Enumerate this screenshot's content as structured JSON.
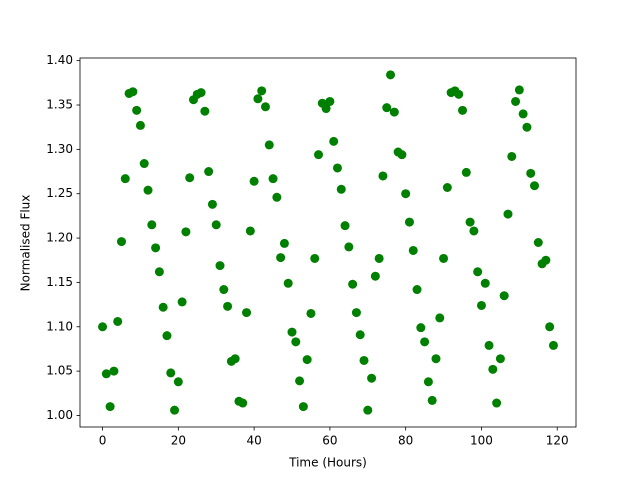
{
  "chart_data": {
    "type": "scatter",
    "xlabel": "Time (Hours)",
    "ylabel": "Normalised Flux",
    "color": "green",
    "x": [
      0,
      1,
      2,
      3,
      4,
      5,
      6,
      7,
      8,
      9,
      10,
      11,
      12,
      13,
      14,
      15,
      16,
      17,
      18,
      19,
      20,
      21,
      22,
      23,
      24,
      25,
      26,
      27,
      28,
      29,
      30,
      31,
      32,
      33,
      34,
      35,
      36,
      37,
      38,
      39,
      40,
      41,
      42,
      43,
      44,
      45,
      46,
      47,
      48,
      49,
      50,
      51,
      52,
      53,
      54,
      55,
      56,
      57,
      58,
      59,
      60,
      61,
      62,
      63,
      64,
      65,
      66,
      67,
      68,
      69,
      70,
      71,
      72,
      73,
      74,
      75,
      76,
      77,
      78,
      79,
      80,
      81,
      82,
      83,
      84,
      85,
      86,
      87,
      88,
      89,
      90,
      91,
      92,
      93,
      94,
      95,
      96,
      97,
      98,
      99,
      100,
      101,
      102,
      103,
      104,
      105,
      106,
      107,
      108,
      109,
      110,
      111,
      112,
      113,
      114,
      115,
      116,
      117,
      118,
      119
    ],
    "values": [
      1.1,
      1.047,
      1.01,
      1.05,
      1.106,
      1.196,
      1.267,
      1.363,
      1.365,
      1.344,
      1.327,
      1.284,
      1.254,
      1.215,
      1.189,
      1.162,
      1.122,
      1.09,
      1.048,
      1.006,
      1.038,
      1.128,
      1.207,
      1.268,
      1.356,
      1.362,
      1.364,
      1.343,
      1.275,
      1.238,
      1.215,
      1.169,
      1.142,
      1.123,
      1.061,
      1.064,
      1.016,
      1.014,
      1.116,
      1.208,
      1.264,
      1.357,
      1.366,
      1.348,
      1.305,
      1.267,
      1.246,
      1.178,
      1.194,
      1.149,
      1.094,
      1.083,
      1.039,
      1.01,
      1.063,
      1.115,
      1.177,
      1.294,
      1.352,
      1.346,
      1.354,
      1.309,
      1.279,
      1.255,
      1.214,
      1.19,
      1.148,
      1.116,
      1.091,
      1.062,
      1.006,
      1.042,
      1.157,
      1.177,
      1.27,
      1.347,
      1.384,
      1.342,
      1.297,
      1.294,
      1.25,
      1.218,
      1.186,
      1.142,
      1.099,
      1.083,
      1.038,
      1.017,
      1.064,
      1.11,
      1.177,
      1.257,
      1.364,
      1.366,
      1.362,
      1.344,
      1.274,
      1.218,
      1.208,
      1.162,
      1.124,
      1.149,
      1.079,
      1.052,
      1.014,
      1.064,
      1.135,
      1.227,
      1.292,
      1.354,
      1.367,
      1.34,
      1.325,
      1.273,
      1.259,
      1.195,
      1.171,
      1.175,
      1.1,
      1.079
    ],
    "xlim": [
      -5.95,
      124.95
    ],
    "xticks": [
      0,
      20,
      40,
      60,
      80,
      100,
      120
    ],
    "ylim": [
      0.987,
      1.403
    ],
    "yticks": [
      {
        "value": 1.0,
        "label": "1.00"
      },
      {
        "value": 1.05,
        "label": "1.05"
      },
      {
        "value": 1.1,
        "label": "1.10"
      },
      {
        "value": 1.15,
        "label": "1.15"
      },
      {
        "value": 1.2,
        "label": "1.20"
      },
      {
        "value": 1.25,
        "label": "1.25"
      },
      {
        "value": 1.3,
        "label": "1.30"
      },
      {
        "value": 1.35,
        "label": "1.35"
      },
      {
        "value": 1.4,
        "label": "1.40"
      }
    ]
  }
}
